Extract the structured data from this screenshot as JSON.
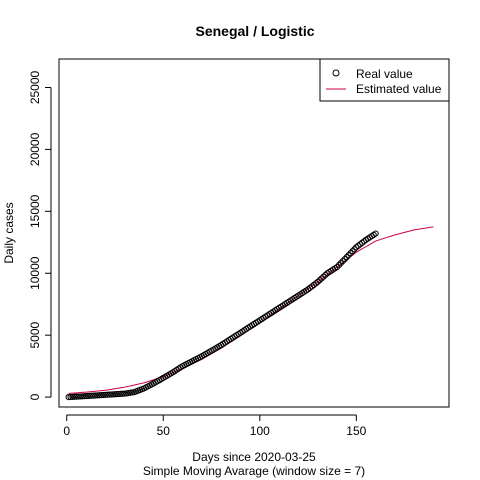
{
  "chart_data": {
    "type": "line",
    "title": "Senegal / Logistic",
    "xlabel": "Days since 2020-03-25",
    "subtitle": "Simple Moving Avarage (window size = 7)",
    "ylabel": "Daily cases",
    "xlim": [
      -4,
      198
    ],
    "ylim": [
      -800,
      27300
    ],
    "x_ticks": [
      0,
      50,
      100,
      150
    ],
    "y_ticks": [
      0,
      5000,
      10000,
      15000,
      20000,
      25000
    ],
    "legend": {
      "position": "top-right",
      "entries": [
        "Real value",
        "Estimated value"
      ]
    },
    "colors": {
      "real": "#000000",
      "estimated": "#CD0050"
    },
    "series": [
      {
        "name": "Real value",
        "style": "points-open-circle",
        "points": [
          [
            1,
            0
          ],
          [
            10,
            80
          ],
          [
            20,
            180
          ],
          [
            30,
            280
          ],
          [
            35,
            400
          ],
          [
            40,
            700
          ],
          [
            45,
            1100
          ],
          [
            50,
            1550
          ],
          [
            55,
            2000
          ],
          [
            60,
            2500
          ],
          [
            65,
            2900
          ],
          [
            70,
            3300
          ],
          [
            75,
            3750
          ],
          [
            80,
            4200
          ],
          [
            85,
            4700
          ],
          [
            90,
            5200
          ],
          [
            95,
            5700
          ],
          [
            100,
            6200
          ],
          [
            105,
            6700
          ],
          [
            110,
            7200
          ],
          [
            115,
            7700
          ],
          [
            120,
            8200
          ],
          [
            125,
            8700
          ],
          [
            130,
            9300
          ],
          [
            135,
            10000
          ],
          [
            140,
            10500
          ],
          [
            145,
            11300
          ],
          [
            150,
            12100
          ],
          [
            155,
            12700
          ],
          [
            160,
            13200
          ]
        ]
      },
      {
        "name": "Estimated value",
        "style": "line",
        "points": [
          [
            1,
            300
          ],
          [
            10,
            400
          ],
          [
            20,
            550
          ],
          [
            30,
            800
          ],
          [
            40,
            1150
          ],
          [
            50,
            1650
          ],
          [
            60,
            2300
          ],
          [
            70,
            3050
          ],
          [
            80,
            3950
          ],
          [
            90,
            4950
          ],
          [
            100,
            6000
          ],
          [
            110,
            7100
          ],
          [
            120,
            8200
          ],
          [
            130,
            9300
          ],
          [
            140,
            10500
          ],
          [
            150,
            11700
          ],
          [
            160,
            12600
          ],
          [
            170,
            13100
          ],
          [
            180,
            13500
          ],
          [
            190,
            13750
          ]
        ]
      }
    ]
  }
}
